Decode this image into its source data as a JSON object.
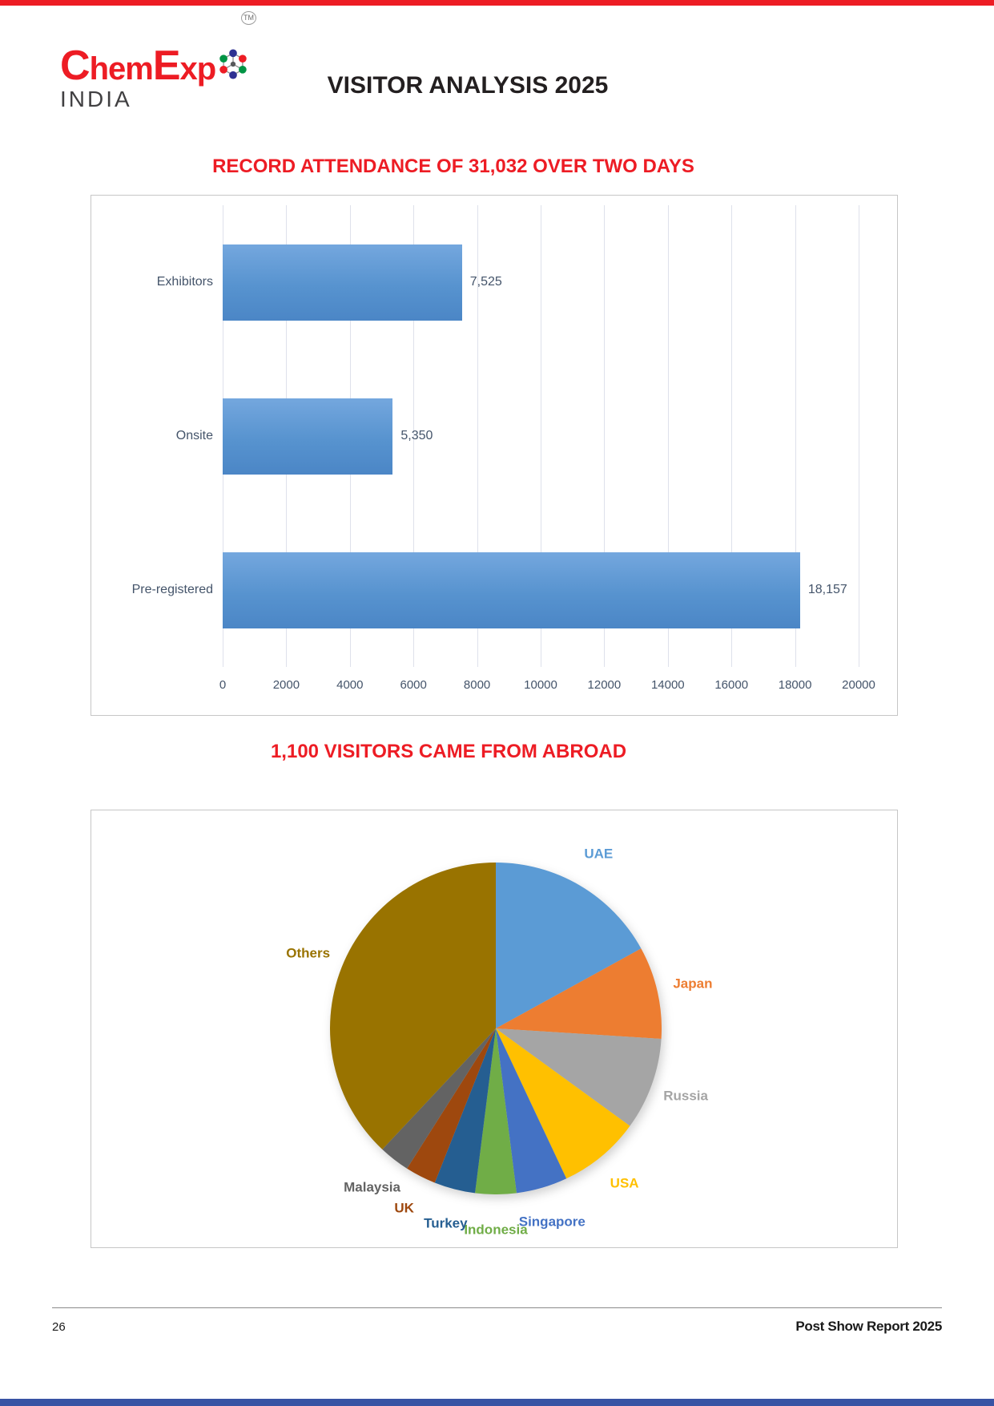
{
  "brand": {
    "logo": {
      "c": "C",
      "hem": "hem",
      "e": "E",
      "xp": "xp",
      "tm": "TM",
      "country": "INDIA"
    },
    "colors": {
      "red": "#ED1C24",
      "india_gray": "#414042",
      "top_strip": "#ED1C24",
      "bottom_strip": "#3853A4"
    }
  },
  "header": {
    "title": "VISITOR ANALYSIS 2025"
  },
  "sections": {
    "attendance": {
      "heading": "RECORD ATTENDANCE OF 31,032 OVER TWO DAYS"
    },
    "abroad": {
      "heading": "1,100 VISITORS CAME FROM ABROAD"
    }
  },
  "chart_data": [
    {
      "type": "bar",
      "orientation": "horizontal",
      "title": "RECORD ATTENDANCE OF 31,032 OVER TWO DAYS",
      "categories": [
        "Exhibitors",
        "Onsite",
        "Pre-registered"
      ],
      "values": [
        7525,
        5350,
        18157
      ],
      "value_labels": [
        "7,525",
        "5,350",
        "18,157"
      ],
      "xlim": [
        0,
        20000
      ],
      "x_ticks": [
        "0",
        "2000",
        "4000",
        "6000",
        "8000",
        "10000",
        "12000",
        "14000",
        "16000",
        "18000",
        "20000"
      ],
      "bar_color": "#5B9BD5",
      "grid": true,
      "legend": "none",
      "text_color": "#44546A"
    },
    {
      "type": "pie",
      "title": "1,100 VISITORS CAME FROM ABROAD",
      "start_angle_deg": 0,
      "direction": "clockwise",
      "slices": [
        {
          "label": "UAE",
          "pct": 17,
          "color": "#5B9BD5"
        },
        {
          "label": "Japan",
          "pct": 9,
          "color": "#ED7D31"
        },
        {
          "label": "Russia",
          "pct": 9,
          "color": "#A5A5A5"
        },
        {
          "label": "USA",
          "pct": 8,
          "color": "#FFC000"
        },
        {
          "label": "Singapore",
          "pct": 5,
          "color": "#4472C4"
        },
        {
          "label": "Indonesia",
          "pct": 4,
          "color": "#70AD47"
        },
        {
          "label": "Turkey",
          "pct": 4,
          "color": "#255E91"
        },
        {
          "label": "UK",
          "pct": 3,
          "color": "#9E480E"
        },
        {
          "label": "Malaysia",
          "pct": 3,
          "color": "#636363"
        },
        {
          "label": "Others",
          "pct": 38,
          "color": "#997300"
        }
      ]
    }
  ],
  "footer": {
    "page_number": "26",
    "report_label": "Post Show Report 2025"
  }
}
